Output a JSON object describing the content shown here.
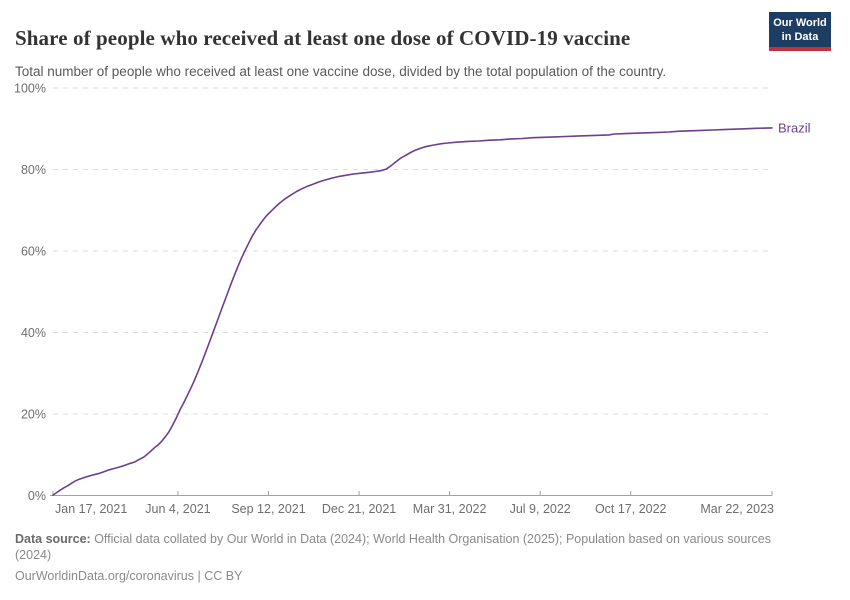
{
  "header": {
    "title": "Share of people who received at least one dose of COVID-19 vaccine",
    "subtitle": "Total number of people who received at least one vaccine dose, divided by the total population of the country.",
    "logo": {
      "line1": "Our World",
      "line2": "in Data"
    }
  },
  "chart_data": {
    "type": "line",
    "title": "Share of people who received at least one dose of COVID-19 vaccine",
    "x_range": [
      0,
      794
    ],
    "x_range_dates": [
      "Jan 17, 2021",
      "Mar 22, 2023"
    ],
    "ylim": [
      0,
      100
    ],
    "y_ticks": [
      0,
      20,
      40,
      60,
      80,
      100
    ],
    "y_tick_format": "%",
    "grid": "dashed-horizontal",
    "legend_position": "end-of-line-label",
    "x_ticks": [
      {
        "day": 0,
        "label": "Jan 17, 2021"
      },
      {
        "day": 138,
        "label": "Jun 4, 2021"
      },
      {
        "day": 238,
        "label": "Sep 12, 2021"
      },
      {
        "day": 338,
        "label": "Dec 21, 2021"
      },
      {
        "day": 438,
        "label": "Mar 31, 2022"
      },
      {
        "day": 538,
        "label": "Jul 9, 2022"
      },
      {
        "day": 638,
        "label": "Oct 17, 2022"
      },
      {
        "day": 794,
        "label": "Mar 22, 2023"
      }
    ],
    "series": [
      {
        "name": "Brazil",
        "color": "#6d3e91",
        "points": [
          [
            0,
            0.1
          ],
          [
            4,
            0.7
          ],
          [
            8,
            1.3
          ],
          [
            12,
            1.9
          ],
          [
            17,
            2.5
          ],
          [
            21,
            3.1
          ],
          [
            25,
            3.6
          ],
          [
            29,
            4.0
          ],
          [
            33,
            4.3
          ],
          [
            37,
            4.6
          ],
          [
            42,
            4.9
          ],
          [
            47,
            5.2
          ],
          [
            52,
            5.5
          ],
          [
            57,
            5.9
          ],
          [
            62,
            6.3
          ],
          [
            67,
            6.6
          ],
          [
            72,
            6.9
          ],
          [
            78,
            7.3
          ],
          [
            84,
            7.8
          ],
          [
            90,
            8.2
          ],
          [
            95,
            8.8
          ],
          [
            100,
            9.4
          ],
          [
            104,
            10.1
          ],
          [
            108,
            10.9
          ],
          [
            112,
            11.7
          ],
          [
            116,
            12.4
          ],
          [
            120,
            13.3
          ],
          [
            124,
            14.4
          ],
          [
            128,
            15.6
          ],
          [
            132,
            17.2
          ],
          [
            136,
            19.0
          ],
          [
            140,
            20.9
          ],
          [
            144,
            22.6
          ],
          [
            148,
            24.4
          ],
          [
            152,
            26.2
          ],
          [
            156,
            28.2
          ],
          [
            160,
            30.3
          ],
          [
            164,
            32.5
          ],
          [
            168,
            34.8
          ],
          [
            172,
            37.2
          ],
          [
            176,
            39.6
          ],
          [
            180,
            42.0
          ],
          [
            184,
            44.4
          ],
          [
            188,
            46.8
          ],
          [
            192,
            49.2
          ],
          [
            196,
            51.6
          ],
          [
            200,
            53.9
          ],
          [
            204,
            56.1
          ],
          [
            208,
            58.2
          ],
          [
            212,
            60.1
          ],
          [
            216,
            61.9
          ],
          [
            220,
            63.6
          ],
          [
            224,
            65.1
          ],
          [
            228,
            66.4
          ],
          [
            232,
            67.6
          ],
          [
            236,
            68.7
          ],
          [
            241,
            69.8
          ],
          [
            246,
            70.9
          ],
          [
            251,
            71.9
          ],
          [
            257,
            72.9
          ],
          [
            263,
            73.8
          ],
          [
            269,
            74.6
          ],
          [
            275,
            75.3
          ],
          [
            281,
            75.9
          ],
          [
            287,
            76.4
          ],
          [
            293,
            76.9
          ],
          [
            300,
            77.4
          ],
          [
            308,
            77.9
          ],
          [
            316,
            78.3
          ],
          [
            324,
            78.6
          ],
          [
            332,
            78.9
          ],
          [
            340,
            79.1
          ],
          [
            348,
            79.3
          ],
          [
            356,
            79.5
          ],
          [
            362,
            79.7
          ],
          [
            368,
            80.1
          ],
          [
            372,
            80.7
          ],
          [
            376,
            81.4
          ],
          [
            380,
            82.1
          ],
          [
            384,
            82.8
          ],
          [
            388,
            83.3
          ],
          [
            392,
            83.8
          ],
          [
            396,
            84.3
          ],
          [
            401,
            84.8
          ],
          [
            407,
            85.3
          ],
          [
            413,
            85.7
          ],
          [
            420,
            86.0
          ],
          [
            428,
            86.3
          ],
          [
            436,
            86.5
          ],
          [
            446,
            86.7
          ],
          [
            458,
            86.9
          ],
          [
            470,
            87.0
          ],
          [
            482,
            87.2
          ],
          [
            494,
            87.3
          ],
          [
            506,
            87.5
          ],
          [
            518,
            87.6
          ],
          [
            530,
            87.8
          ],
          [
            542,
            87.9
          ],
          [
            554,
            88.0
          ],
          [
            566,
            88.1
          ],
          [
            578,
            88.2
          ],
          [
            590,
            88.3
          ],
          [
            602,
            88.4
          ],
          [
            614,
            88.5
          ],
          [
            620,
            88.7
          ],
          [
            632,
            88.8
          ],
          [
            644,
            88.9
          ],
          [
            656,
            89.0
          ],
          [
            668,
            89.1
          ],
          [
            680,
            89.2
          ],
          [
            692,
            89.4
          ],
          [
            704,
            89.5
          ],
          [
            716,
            89.6
          ],
          [
            728,
            89.7
          ],
          [
            740,
            89.8
          ],
          [
            752,
            89.9
          ],
          [
            764,
            90.0
          ],
          [
            776,
            90.1
          ],
          [
            794,
            90.2
          ]
        ]
      }
    ]
  },
  "footer": {
    "source_label": "Data source:",
    "source_rest": " Official data collated by Our World in Data (2024); World Health Organisation (2025); Population based on various sources (2024)",
    "link_text": "OurWorldinData.org/coronavirus",
    "separator": " | ",
    "license": "CC BY"
  },
  "colors": {
    "line": "#6d3e91",
    "logo_bg": "#1d3d63",
    "logo_accent": "#c5303e",
    "grid": "#dedede",
    "axis": "#a3a3a3",
    "tick_label": "#6e6e6e",
    "title": "#333333",
    "subtitle": "#595959",
    "footer": "#8a8a8a",
    "footer_bold": "#6b6b6b"
  }
}
